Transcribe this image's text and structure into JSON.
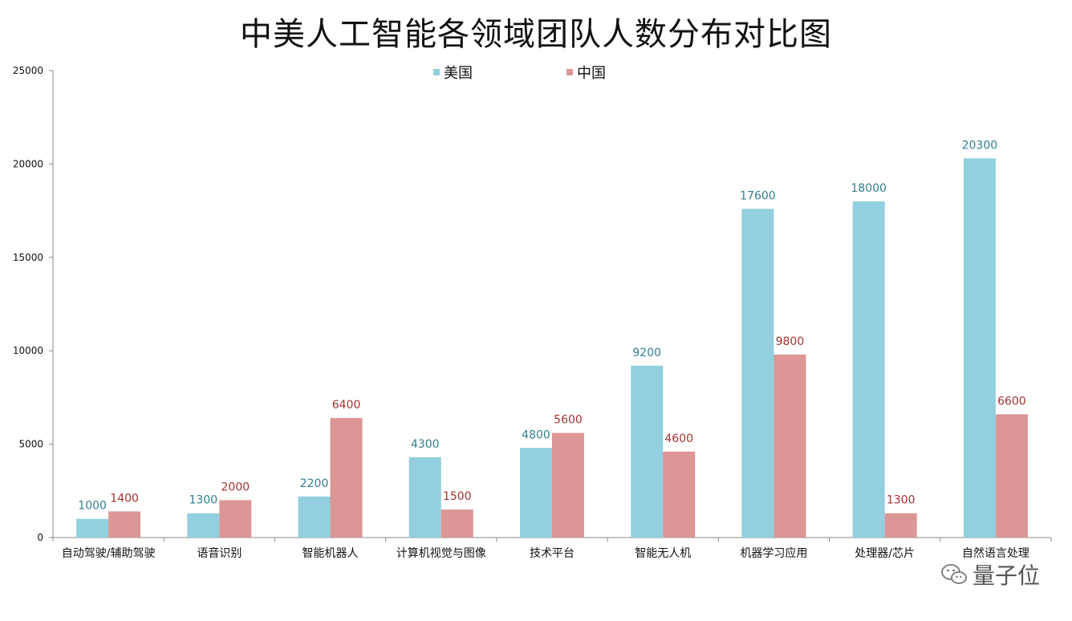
{
  "title": "中美人工智能各领域团队人数分布对比图",
  "watermark": {
    "text": "量子位",
    "icon": "wechat-icon"
  },
  "colors": {
    "usa": "#92cfdf",
    "china": "#db9695",
    "usa_label": "#2f7e90",
    "china_label": "#a33330",
    "axis": "#888888"
  },
  "chart_data": {
    "type": "bar",
    "title": "中美人工智能各领域团队人数分布对比图",
    "xlabel": "",
    "ylabel": "",
    "ylim": [
      0,
      25000
    ],
    "yticks": [
      0,
      5000,
      10000,
      15000,
      20000,
      25000
    ],
    "grid": false,
    "legend_position": "top-center",
    "categories": [
      "自动驾驶/辅助驾驶",
      "语音识别",
      "智能机器人",
      "计算机视觉与图像",
      "技术平台",
      "智能无人机",
      "机器学习应用",
      "处理器/芯片",
      "自然语言处理"
    ],
    "series": [
      {
        "name": "美国",
        "values": [
          1000,
          1300,
          2200,
          4300,
          4800,
          9200,
          17600,
          18000,
          20300
        ]
      },
      {
        "name": "中国",
        "values": [
          1400,
          2000,
          6400,
          1500,
          5600,
          4600,
          9800,
          1300,
          6600
        ]
      }
    ]
  }
}
